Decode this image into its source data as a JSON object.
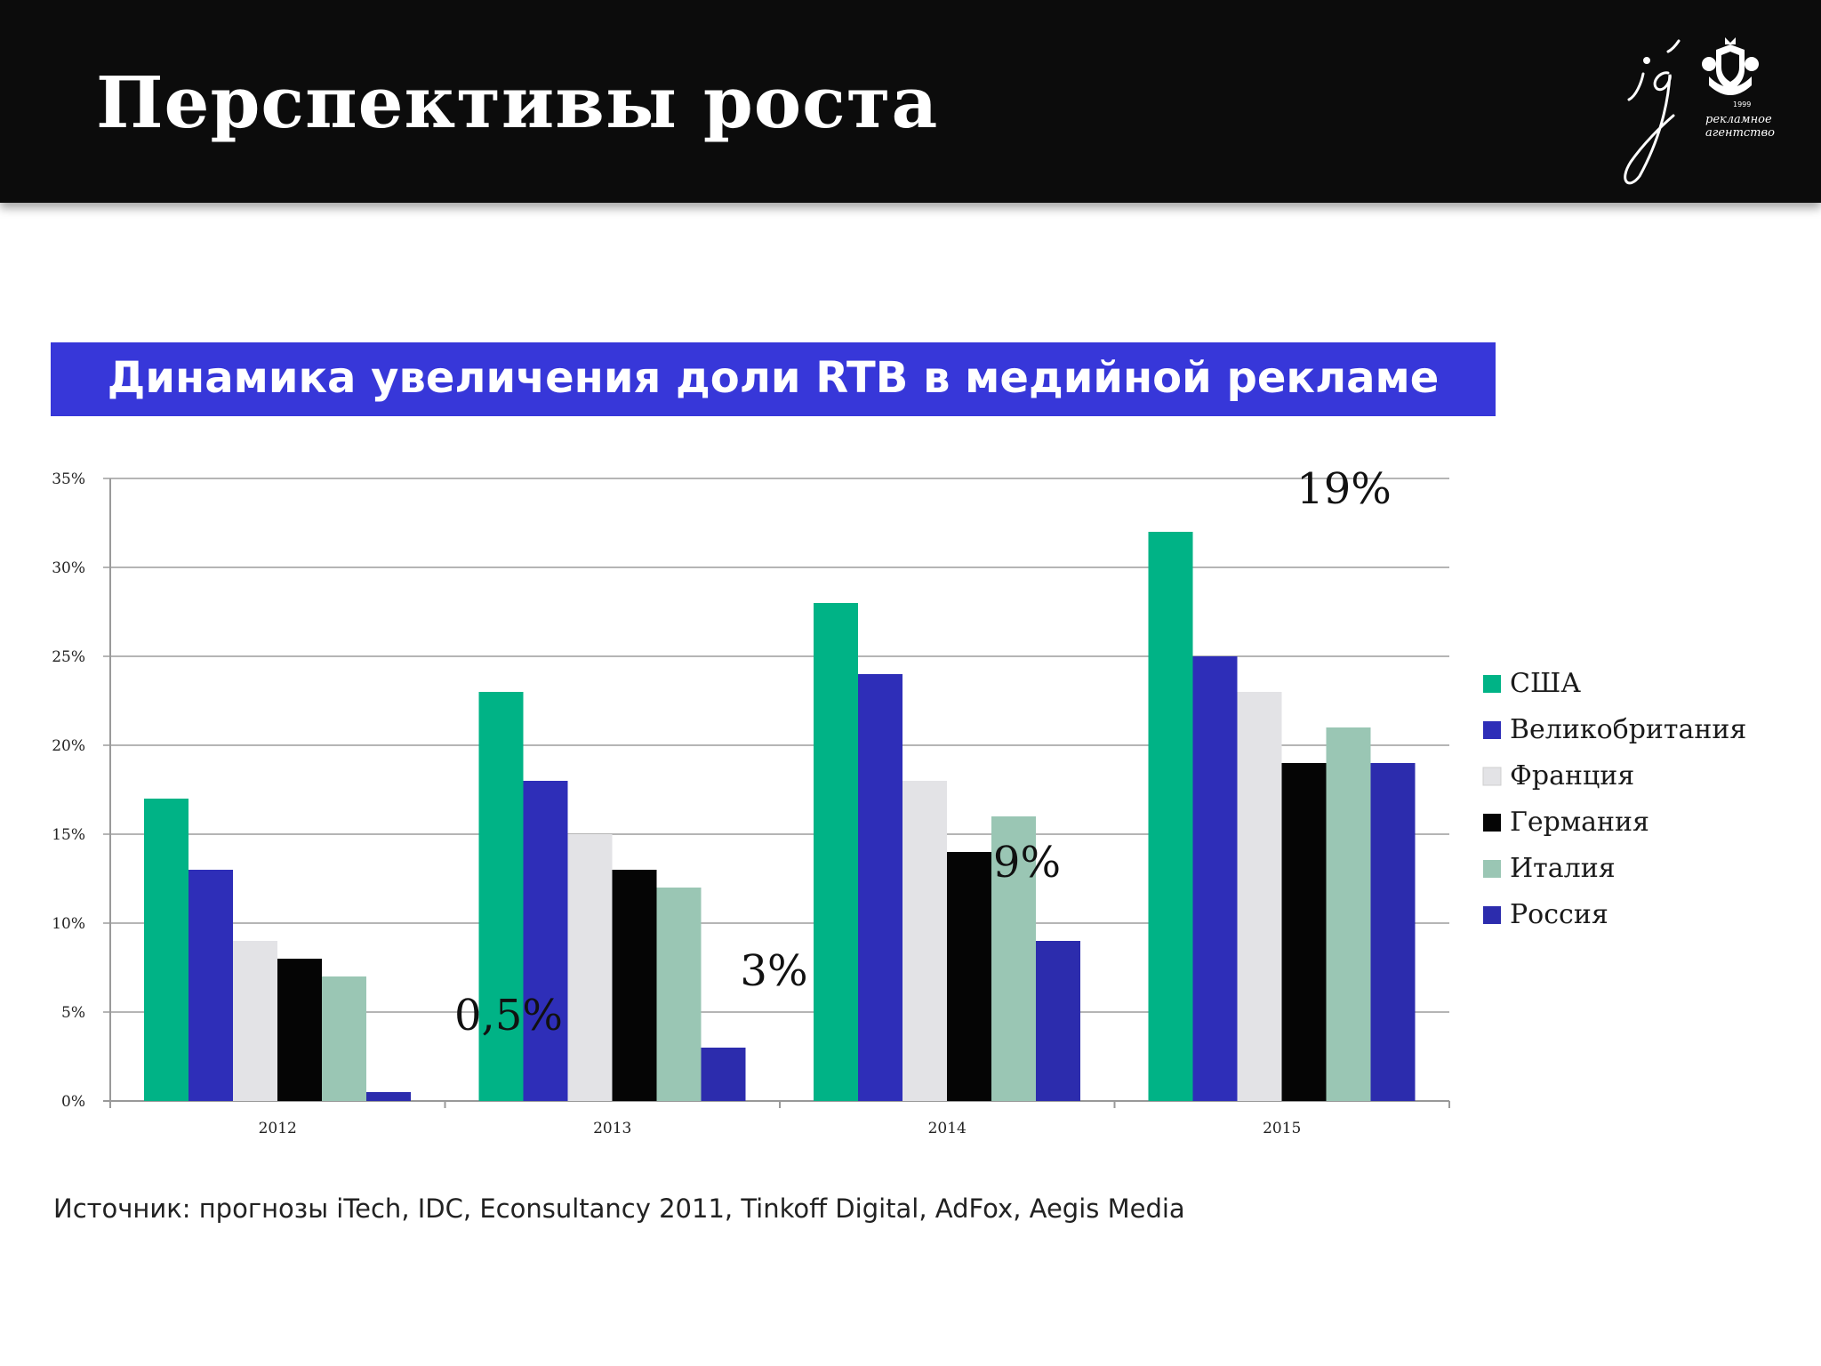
{
  "header": {
    "title": "Перспективы роста"
  },
  "logo": {
    "monogram": "ig",
    "year": "1999",
    "line1": "рекламное",
    "line2": "агентство"
  },
  "chart_data": {
    "type": "bar",
    "title": "Динамика увеличения доли RTB в медийной рекламе",
    "categories": [
      "2012",
      "2013",
      "2014",
      "2015"
    ],
    "ylim": [
      0,
      35
    ],
    "y_ticks": [
      "0%",
      "5%",
      "10%",
      "15%",
      "20%",
      "25%",
      "30%",
      "35%"
    ],
    "grid": true,
    "legend_position": "right",
    "series": [
      {
        "name": "США",
        "color": "#00b386",
        "values": [
          17,
          23,
          28,
          32
        ]
      },
      {
        "name": "Великобритания",
        "color": "#2e2eb8",
        "values": [
          13,
          18,
          24,
          25
        ]
      },
      {
        "name": "Франция",
        "color": "#e3e3e6",
        "values": [
          9,
          15,
          18,
          23
        ]
      },
      {
        "name": "Германия",
        "color": "#050505",
        "values": [
          8,
          13,
          14,
          19
        ]
      },
      {
        "name": "Италия",
        "color": "#9ac6b4",
        "values": [
          7,
          12,
          16,
          21
        ]
      },
      {
        "name": "Россия",
        "color": "#2c2cad",
        "values": [
          0.5,
          3,
          9,
          19
        ]
      }
    ],
    "annotations": [
      "0,5%",
      "3%",
      "9%",
      "19%"
    ]
  },
  "source": "Источник: прогнозы iTech, IDC, Econsultancy 2011, Tinkoff Digital, AdFox, Aegis Media"
}
